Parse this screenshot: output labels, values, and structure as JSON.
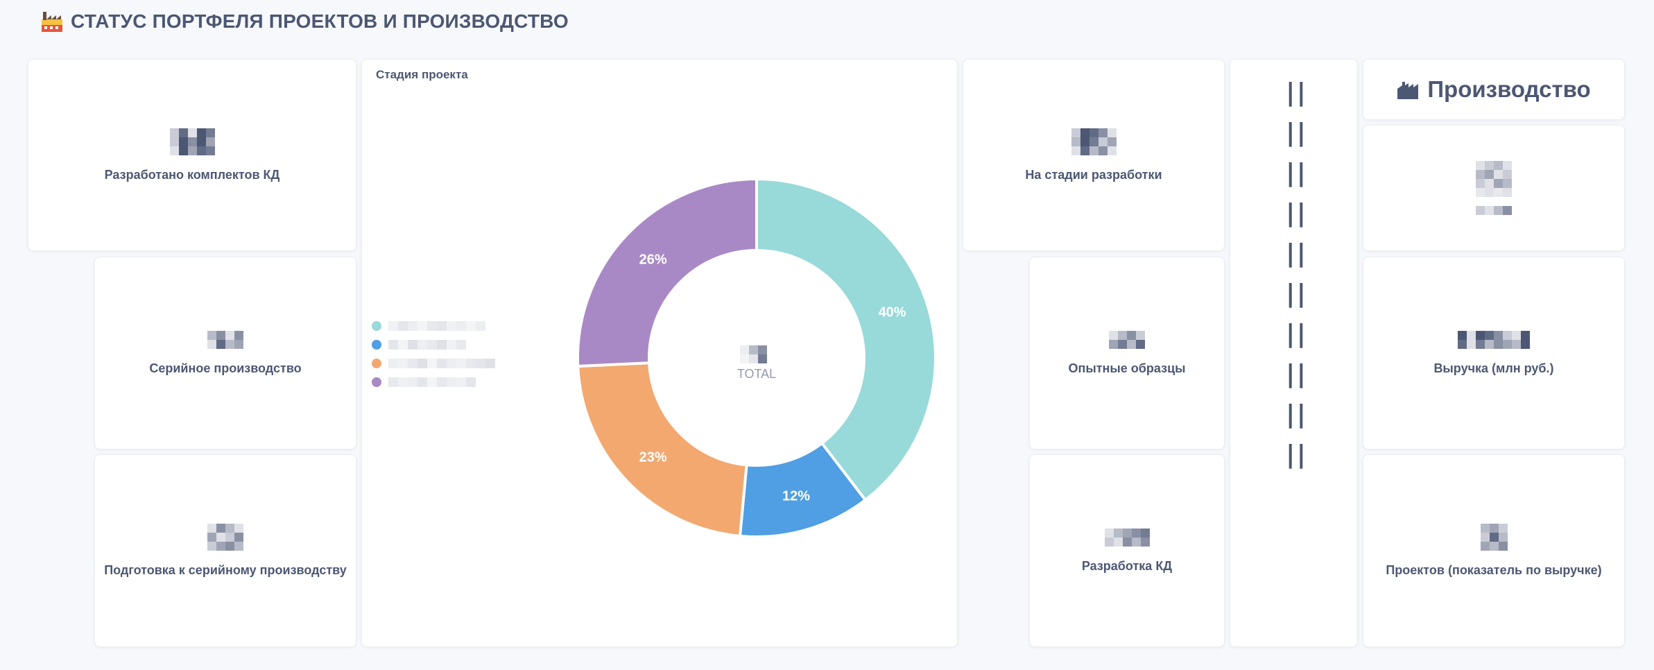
{
  "page": {
    "title": "СТАТУС ПОРТФЕЛЯ ПРОЕКТОВ И ПРОИЗВОДСТВО",
    "title_icon": "factory-icon"
  },
  "cards": {
    "kd_developed": {
      "label": "Разработано комплектов КД"
    },
    "serial": {
      "label": "Серийное производство"
    },
    "serial_prep": {
      "label": "Подготовка к серийному производству"
    },
    "in_development": {
      "label": "На стадии разработки"
    },
    "prototypes": {
      "label": "Опытные образцы"
    },
    "kd_development": {
      "label": "Разработка КД"
    },
    "production_header": {
      "label": "Производство",
      "icon": "factory-icon"
    },
    "revenue": {
      "label": "Выручка (млн руб.)"
    },
    "projects_revenue": {
      "label": "Проектов (показатель по выручке)"
    }
  },
  "divider": {
    "glyph": "||",
    "count": 10
  },
  "colors": {
    "teal": "#98d9d9",
    "blue": "#509ee3",
    "orange": "#f2a86f",
    "purple": "#a989c5",
    "text": "#4c5773"
  },
  "chart_data": {
    "type": "pie",
    "title": "Стадия проекта",
    "center_label": "TOTAL",
    "series": [
      {
        "value": 40,
        "label": "40%",
        "color": "#98d9d9"
      },
      {
        "value": 12,
        "label": "12%",
        "color": "#509ee3"
      },
      {
        "value": 23,
        "label": "23%",
        "color": "#f2a86f"
      },
      {
        "value": 26,
        "label": "26%",
        "color": "#a989c5"
      }
    ],
    "legend_placement": "left"
  }
}
